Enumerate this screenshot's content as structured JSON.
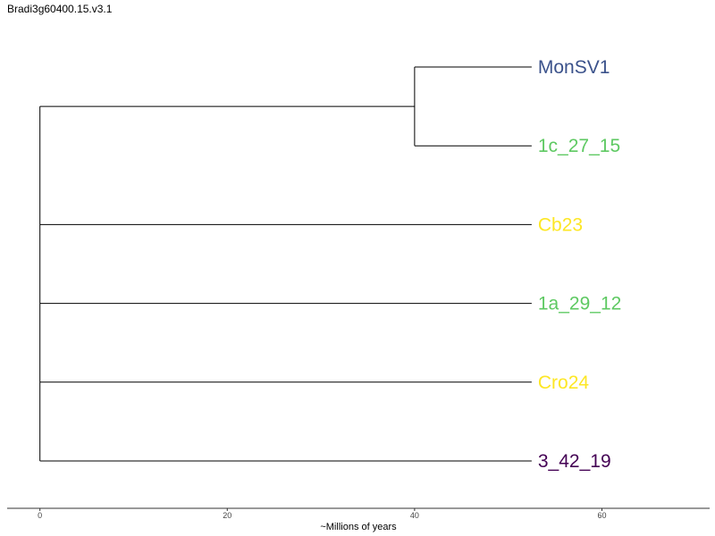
{
  "title": "Bradi3g60400.15.v3.1",
  "chart_data": {
    "type": "tree",
    "title": "Bradi3g60400.15.v3.1",
    "xlabel": "~Millions of years",
    "xlim": [
      -3.5,
      71.5
    ],
    "xticks": [
      0,
      20,
      40,
      60
    ],
    "tip_x": 52.5,
    "tips": [
      {
        "name": "MonSV1",
        "color": "#3b528b"
      },
      {
        "name": "1c_27_15",
        "color": "#5ec962"
      },
      {
        "name": "Cb23",
        "color": "#fde725"
      },
      {
        "name": "1a_29_12",
        "color": "#5ec962"
      },
      {
        "name": "Cro24",
        "color": "#fde725"
      },
      {
        "name": "3_42_19",
        "color": "#440154"
      }
    ],
    "internal_nodes": [
      {
        "x": 40,
        "children": [
          "MonSV1",
          "1c_27_15"
        ]
      },
      {
        "x": 0,
        "children": [
          "node0",
          "Cb23",
          "1a_29_12",
          "Cro24",
          "3_42_19"
        ]
      }
    ]
  }
}
